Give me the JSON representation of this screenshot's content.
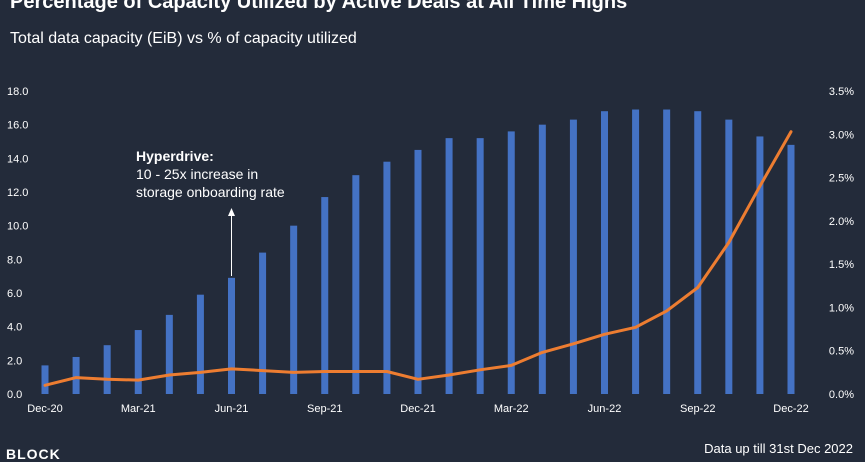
{
  "title": "Percentage of Capacity Utilized by Active Deals at All Time Highs",
  "subtitle": "Total data capacity (EiB) vs % of capacity utilized",
  "footer": "Data up till 31st Dec 2022",
  "logo_text": "BLOCK",
  "colors": {
    "background": "#232b3a",
    "bar": "#4472c4",
    "line": "#ed7d31",
    "text": "#ffffff"
  },
  "chart_data": {
    "type": "bar",
    "categories": [
      "Dec-20",
      "Jan-21",
      "Feb-21",
      "Mar-21",
      "Apr-21",
      "May-21",
      "Jun-21",
      "Jul-21",
      "Aug-21",
      "Sep-21",
      "Oct-21",
      "Nov-21",
      "Dec-21",
      "Jan-22",
      "Feb-22",
      "Mar-22",
      "Apr-22",
      "May-22",
      "Jun-22",
      "Jul-22",
      "Aug-22",
      "Sep-22",
      "Oct-22",
      "Nov-22",
      "Dec-22"
    ],
    "x_tick_labels": [
      "Dec-20",
      "Mar-21",
      "Jun-21",
      "Sep-21",
      "Dec-21",
      "Mar-22",
      "Jun-22",
      "Sep-22",
      "Dec-22"
    ],
    "series": [
      {
        "type": "bar",
        "axis": "left",
        "values": [
          1.7,
          2.2,
          2.9,
          3.8,
          4.7,
          5.9,
          6.9,
          8.4,
          10.0,
          11.7,
          13.0,
          13.8,
          14.5,
          15.2,
          15.2,
          15.6,
          16.0,
          16.3,
          16.8,
          16.9,
          16.9,
          16.8,
          16.3,
          15.3,
          14.8
        ]
      },
      {
        "type": "line",
        "axis": "right",
        "values": [
          0.1,
          0.19,
          0.17,
          0.16,
          0.22,
          0.25,
          0.29,
          0.27,
          0.25,
          0.26,
          0.26,
          0.26,
          0.17,
          0.22,
          0.28,
          0.33,
          0.48,
          0.58,
          0.69,
          0.77,
          0.96,
          1.23,
          1.75,
          2.4,
          3.03
        ]
      }
    ],
    "y_left": {
      "min": 0,
      "max": 18,
      "ticks": [
        "0.0",
        "2.0",
        "4.0",
        "6.0",
        "8.0",
        "10.0",
        "12.0",
        "14.0",
        "16.0",
        "18.0"
      ]
    },
    "y_right": {
      "min": 0,
      "max": 3.5,
      "ticks": [
        "0.0%",
        "0.5%",
        "1.0%",
        "1.5%",
        "2.0%",
        "2.5%",
        "3.0%",
        "3.5%"
      ]
    },
    "annotation": {
      "title": "Hyperdrive:",
      "lines": [
        "10 - 25x increase in",
        "storage onboarding rate"
      ],
      "category": "Jun-21"
    },
    "grid": false
  }
}
